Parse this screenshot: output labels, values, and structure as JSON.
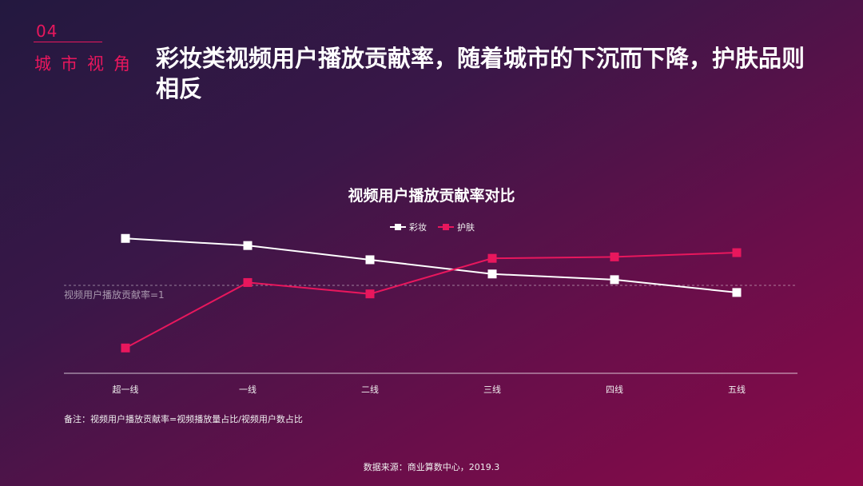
{
  "section": {
    "number": "04",
    "name": "城市视角"
  },
  "headline": "彩妆类视频用户播放贡献率，随着城市的下沉而下降，护肤品则相反",
  "chart_data": {
    "type": "line",
    "title": "视频用户播放贡献率对比",
    "categories": [
      "超一线",
      "一线",
      "二线",
      "三线",
      "四线",
      "五线"
    ],
    "series": [
      {
        "name": "彩妆",
        "color": "#ffffff",
        "values": [
          1.33,
          1.28,
          1.18,
          1.08,
          1.04,
          0.95
        ]
      },
      {
        "name": "护肤",
        "color": "#e8175d",
        "values": [
          0.56,
          1.02,
          0.94,
          1.19,
          1.2,
          1.23
        ]
      }
    ],
    "reference": {
      "value": 1.0,
      "label": "视频用户播放贡献率=1"
    },
    "ylim": [
      0.5,
      1.5
    ],
    "legend_position": "top-center",
    "xlabel": "",
    "ylabel": ""
  },
  "note": "备注：视频用户播放贡献率=视频播放量占比/视频用户数占比",
  "source": "数据来源：商业算数中心，2019.3"
}
